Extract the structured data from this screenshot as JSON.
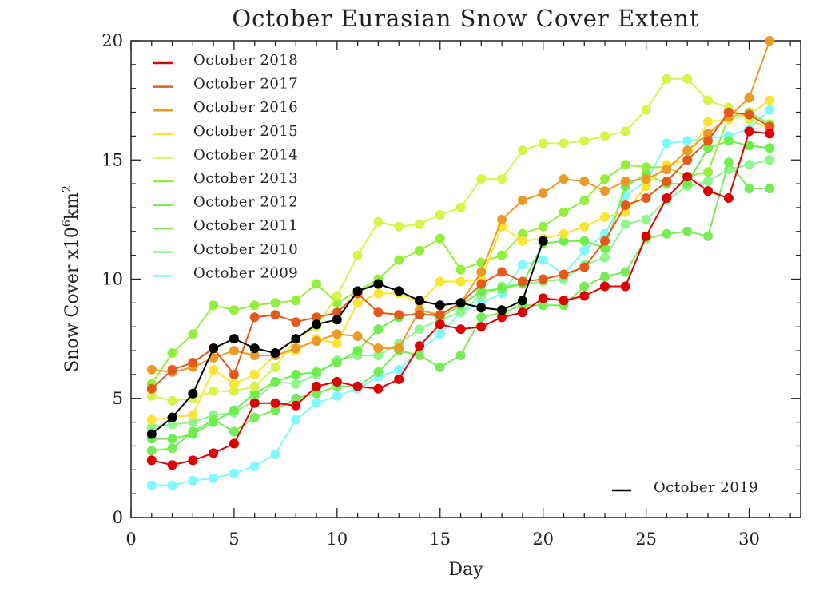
{
  "chart_data": {
    "type": "line",
    "title": "October Eurasian Snow Cover Extent",
    "xlabel": "Day",
    "ylabel": "Snow Cover x10",
    "ylabel_exponent": "6",
    "ylabel_unit": "km",
    "ylabel_unit_exponent": "2",
    "xlim": [
      0,
      32.5
    ],
    "ylim": [
      0,
      20
    ],
    "xticks": [
      0,
      5,
      10,
      15,
      20,
      25,
      30
    ],
    "yticks": [
      0,
      5,
      10,
      15,
      20
    ],
    "legend_position": "top-left",
    "highlight_legend_position": "bottom-right",
    "series": [
      {
        "name": "October 2009",
        "color": "#7ff8ff",
        "values": [
          1.35,
          1.35,
          1.55,
          1.65,
          1.85,
          2.15,
          2.65,
          4.1,
          4.8,
          5.1,
          5.4,
          5.9,
          6.2,
          7.0,
          7.7,
          8.6,
          9.0,
          9.4,
          10.6,
          10.8,
          10.2,
          11.2,
          11.9,
          13.5,
          14.1,
          15.7,
          15.8,
          15.9,
          16.0,
          16.3,
          17.1
        ]
      },
      {
        "name": "October 2010",
        "color": "#8ff58c",
        "values": [
          3.8,
          3.9,
          4.0,
          4.3,
          4.4,
          4.9,
          5.7,
          5.6,
          6.0,
          6.6,
          6.8,
          6.8,
          7.3,
          7.9,
          8.3,
          8.6,
          9.3,
          9.7,
          9.8,
          9.9,
          10.0,
          10.6,
          10.9,
          12.3,
          12.5,
          13.3,
          13.9,
          14.1,
          14.6,
          14.8,
          15.0
        ]
      },
      {
        "name": "October 2011",
        "color": "#77ec58",
        "values": [
          2.8,
          2.9,
          3.6,
          4.1,
          3.6,
          4.2,
          4.5,
          5.0,
          5.2,
          5.5,
          5.5,
          6.1,
          7.0,
          6.8,
          6.3,
          6.8,
          8.4,
          8.6,
          8.9,
          8.9,
          8.9,
          9.7,
          10.1,
          10.3,
          11.7,
          11.9,
          12.0,
          11.8,
          14.9,
          13.8,
          13.8
        ]
      },
      {
        "name": "October 2012",
        "color": "#6eee4c",
        "values": [
          3.3,
          3.3,
          3.5,
          4.0,
          4.5,
          5.2,
          5.7,
          6.0,
          6.1,
          6.5,
          7.0,
          7.9,
          8.4,
          8.6,
          8.4,
          8.9,
          9.5,
          9.6,
          9.8,
          11.5,
          11.6,
          11.6,
          11.3,
          13.9,
          14.4,
          14.0,
          14.0,
          15.5,
          15.8,
          15.6,
          15.5
        ]
      },
      {
        "name": "October 2013",
        "color": "#93ef3c",
        "values": [
          5.6,
          6.9,
          7.7,
          8.9,
          8.7,
          8.9,
          9.0,
          9.1,
          9.8,
          9.0,
          9.5,
          10.0,
          10.8,
          11.2,
          11.7,
          10.4,
          10.7,
          11.0,
          11.9,
          12.2,
          12.8,
          13.3,
          14.2,
          14.8,
          14.7,
          14.7,
          14.3,
          14.5,
          16.8,
          17.0,
          16.5
        ]
      },
      {
        "name": "October 2014",
        "color": "#d5f54a",
        "values": [
          5.1,
          4.9,
          5.0,
          5.3,
          5.3,
          5.5,
          6.3,
          7.5,
          8.0,
          9.3,
          11.0,
          12.4,
          12.2,
          12.3,
          12.7,
          13.0,
          14.2,
          14.2,
          15.4,
          15.7,
          15.7,
          15.8,
          16.0,
          16.2,
          17.1,
          18.4,
          18.4,
          17.5,
          17.2,
          16.7,
          16.3
        ]
      },
      {
        "name": "October 2015",
        "color": "#fbe432",
        "values": [
          4.1,
          4.2,
          4.3,
          6.2,
          5.6,
          6.0,
          6.8,
          7.0,
          7.5,
          7.3,
          9.0,
          9.4,
          9.4,
          9.0,
          9.9,
          9.9,
          10.0,
          12.2,
          11.6,
          11.7,
          11.9,
          12.2,
          12.6,
          12.8,
          13.9,
          14.8,
          15.0,
          16.6,
          16.7,
          16.9,
          17.5
        ]
      },
      {
        "name": "October 2016",
        "color": "#ec9a27",
        "values": [
          6.2,
          6.1,
          6.3,
          6.7,
          7.0,
          6.8,
          6.8,
          7.1,
          7.4,
          7.7,
          7.6,
          7.1,
          7.1,
          8.7,
          8.5,
          9.0,
          10.3,
          12.5,
          13.3,
          13.6,
          14.2,
          14.1,
          13.7,
          14.1,
          14.2,
          14.6,
          15.4,
          16.1,
          16.8,
          17.6,
          20.0
        ]
      },
      {
        "name": "October 2017",
        "color": "#e35a1b",
        "values": [
          5.4,
          6.2,
          6.5,
          7.1,
          6.0,
          8.4,
          8.5,
          8.2,
          8.4,
          8.6,
          9.4,
          8.6,
          8.5,
          8.5,
          8.5,
          9.0,
          9.8,
          10.3,
          9.9,
          10.0,
          10.2,
          10.5,
          11.6,
          13.1,
          13.4,
          14.1,
          15.0,
          15.8,
          17.0,
          16.9,
          16.4
        ]
      },
      {
        "name": "October 2018",
        "color": "#dc0000",
        "values": [
          2.4,
          2.2,
          2.4,
          2.7,
          3.1,
          4.8,
          4.8,
          4.7,
          5.5,
          5.7,
          5.5,
          5.4,
          5.8,
          7.2,
          8.1,
          7.9,
          8.0,
          8.4,
          8.6,
          9.2,
          9.1,
          9.3,
          9.7,
          9.7,
          11.8,
          13.4,
          14.3,
          13.7,
          13.4,
          16.2,
          16.1
        ]
      },
      {
        "name": "October 2019",
        "color": "#000000",
        "values": [
          3.5,
          4.2,
          5.2,
          7.1,
          7.5,
          7.1,
          6.9,
          7.5,
          8.1,
          8.3,
          9.5,
          9.8,
          9.5,
          9.1,
          8.9,
          9.0,
          8.8,
          8.7,
          9.1,
          11.6
        ]
      }
    ],
    "legend_top_order": [
      "October 2018",
      "October 2017",
      "October 2016",
      "October 2015",
      "October 2014",
      "October 2013",
      "October 2012",
      "October 2011",
      "October 2010",
      "October 2009"
    ],
    "legend_bottom": "October 2019"
  }
}
